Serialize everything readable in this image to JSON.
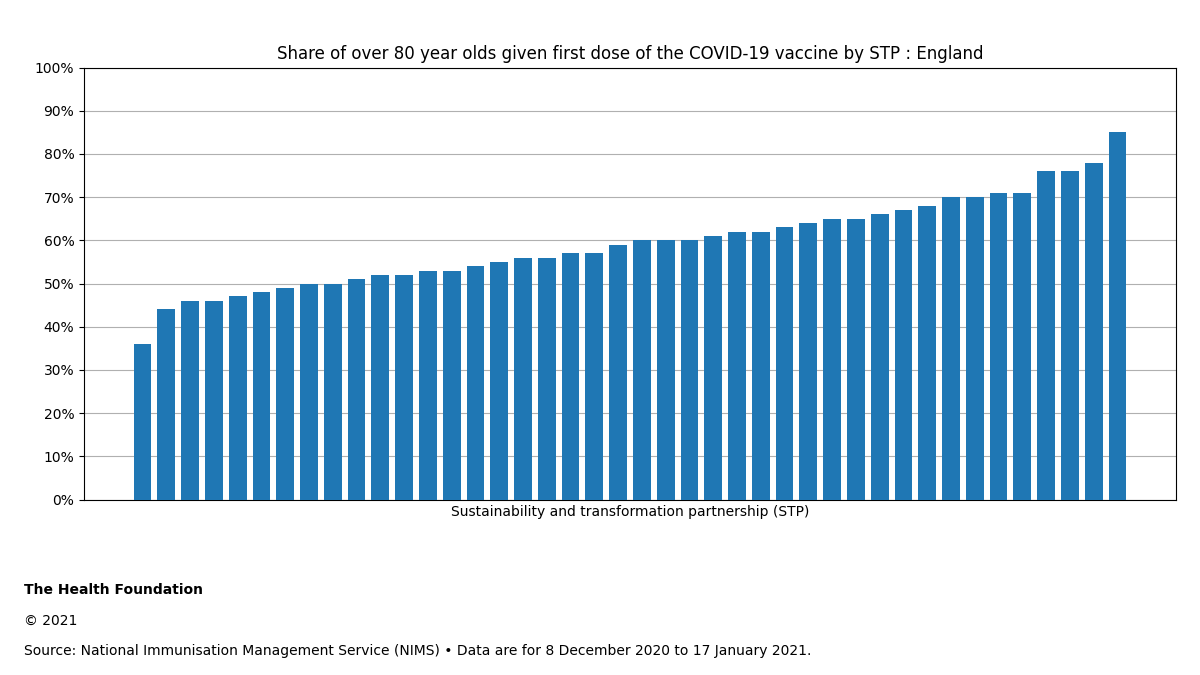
{
  "chart_data": {
    "type": "bar",
    "title": "Share of over 80 year olds given first dose of the COVID-19 vaccine by STP : England",
    "x_label": "Sustainability and transformation partnership (STP)",
    "categories": [
      null,
      null,
      null,
      null,
      null,
      null,
      null,
      null,
      null,
      null,
      null,
      null,
      null,
      null,
      null,
      null,
      null,
      null,
      null,
      null,
      null,
      null,
      null,
      null,
      null,
      null,
      null,
      null,
      null,
      null,
      null,
      null,
      null,
      null,
      null,
      null,
      null,
      null,
      null,
      null,
      null,
      null
    ],
    "values": [
      0.36,
      0.44,
      0.46,
      0.46,
      0.47,
      0.48,
      0.49,
      0.5,
      0.5,
      0.51,
      0.52,
      0.52,
      0.53,
      0.53,
      0.54,
      0.55,
      0.56,
      0.56,
      0.57,
      0.57,
      0.59,
      0.6,
      0.6,
      0.6,
      0.61,
      0.62,
      0.62,
      0.63,
      0.64,
      0.65,
      0.65,
      0.66,
      0.67,
      0.68,
      0.7,
      0.7,
      0.71,
      0.71,
      0.76,
      0.76,
      0.78,
      0.85
    ],
    "ylim": [
      0,
      1.0
    ],
    "yticks": [
      {
        "value": 0.0,
        "label": "0%"
      },
      {
        "value": 0.1,
        "label": "10%"
      },
      {
        "value": 0.2,
        "label": "20%"
      },
      {
        "value": 0.3,
        "label": "30%"
      },
      {
        "value": 0.4,
        "label": "40%"
      },
      {
        "value": 0.5,
        "label": "50%"
      },
      {
        "value": 0.6,
        "label": "60%"
      },
      {
        "value": 0.7,
        "label": "70%"
      },
      {
        "value": 0.8,
        "label": "80%"
      },
      {
        "value": 0.9,
        "label": "90%"
      },
      {
        "value": 1.0,
        "label": "100%"
      }
    ],
    "grid": true,
    "tick_labels": "y",
    "annotations": [
      "The Health Foundation",
      "© 2021",
      "Source: National Immunisation Management Service (NIMS) • Data are for 8 December 2020 to 17 January 2021."
    ]
  }
}
